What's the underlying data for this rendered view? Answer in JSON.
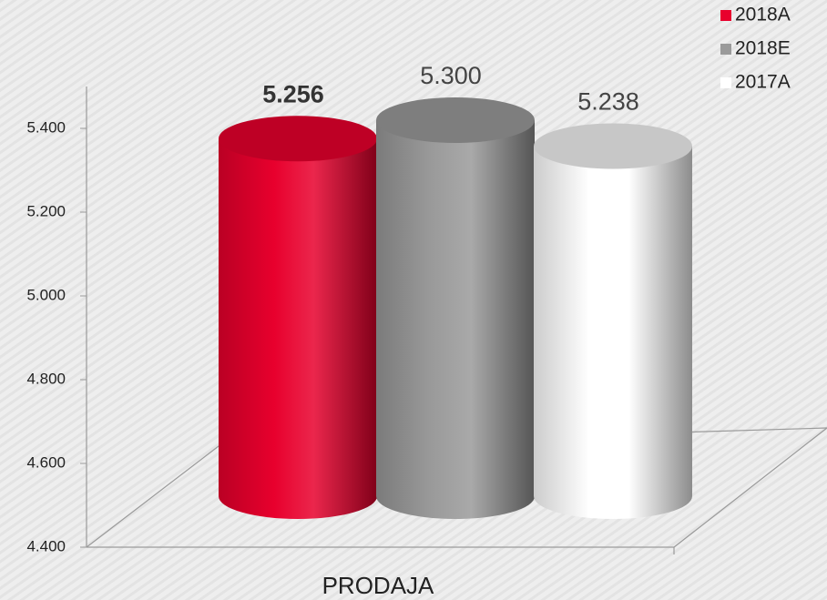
{
  "chart_data": {
    "type": "bar3d",
    "categories": [
      "PRODAJA"
    ],
    "series": [
      {
        "name": "2018A",
        "color": "#e8002d",
        "values": [
          5256
        ],
        "value_labels": [
          "5.256"
        ],
        "bold": true
      },
      {
        "name": "2018E",
        "color": "#9a9a9a",
        "values": [
          5300
        ],
        "value_labels": [
          "5.300"
        ]
      },
      {
        "name": "2017A",
        "color": "#ffffff",
        "values": [
          5238
        ],
        "value_labels": [
          "5.238"
        ]
      }
    ],
    "ylim": [
      4400,
      5500
    ],
    "yticks": [
      {
        "value": 4400,
        "label": "4.400"
      },
      {
        "value": 4600,
        "label": "4.600"
      },
      {
        "value": 4800,
        "label": "4.800"
      },
      {
        "value": 5000,
        "label": "5.000"
      },
      {
        "value": 5200,
        "label": "5.200"
      },
      {
        "value": 5400,
        "label": "5.400"
      }
    ],
    "legend": "top-right"
  }
}
